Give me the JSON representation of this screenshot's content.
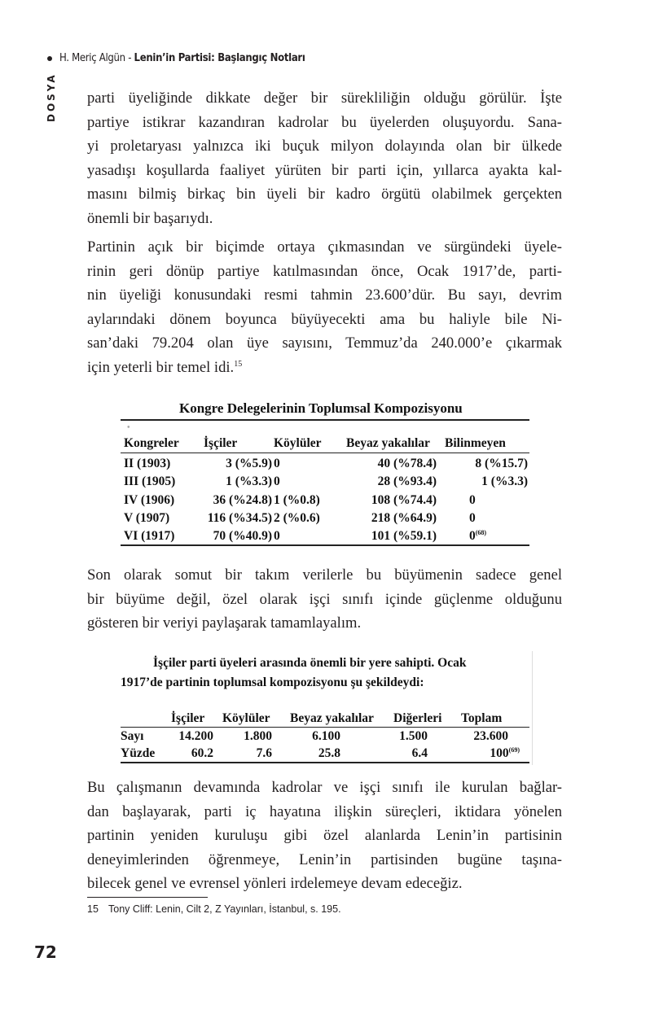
{
  "header": {
    "author": "H. Meriç Algün - ",
    "title": "Lenin’in Partisi: Başlangıç Notları",
    "section": "DOSYA"
  },
  "paragraphs": [
    {
      "lines": [
        "parti üyeliğinde dikkate değer bir sürekliliğin olduğu görülür. İşte",
        "partiye istikrar kazandıran kadrolar bu üyelerden oluşuyordu. Sana-",
        "yi proletaryası yalnızca iki buçuk milyon dolayında olan bir ülkede",
        "yasadışı koşullarda faaliyet yürüten bir parti için, yıllarca ayakta kal-",
        "masını bilmiş birkaç bin üyeli bir kadro örgütü olabilmek gerçekten",
        "önemli bir başarıydı."
      ]
    },
    {
      "lines": [
        "Partinin açık bir biçimde ortaya çıkmasından ve sürgündeki üyele-",
        "rinin geri dönüp partiye katılmasından önce, Ocak 1917’de, parti-",
        "nin üyeliği konusundaki resmi tahmin 23.600’dür. Bu sayı, devrim",
        "aylarındaki dönem boyunca büyüyecekti ama bu haliyle bile Ni-",
        "san’daki 79.204 olan üye sayısını, Temmuz’da 240.000’e çıkarmak",
        "için yeterli bir temel idi."
      ],
      "footnote_ref": "15"
    },
    {
      "lines": [
        "Son olarak somut bir takım verilerle bu büyümenin sadece genel",
        "bir büyüme değil, özel olarak işçi sınıfı içinde güçlenme olduğunu",
        "gösteren bir veriyi paylaşarak tamamlayalım."
      ]
    },
    {
      "lines": [
        "Bu çalışmanın devamında kadrolar ve işçi sınıfı ile kurulan bağlar-",
        "dan başlayarak, parti iç hayatına ilişkin süreçleri, iktidara yönelen",
        "partinin yeniden kuruluşu gibi özel alanlarda Lenin’in partisinin",
        "deneyimlerinden öğrenmeye, Lenin’in partisinden bugüne taşına-",
        "bilecek genel ve evrensel yönleri irdelemeye devam edeceğiz."
      ]
    }
  ],
  "table1": {
    "title": "Kongre Delegelerinin Toplumsal Kompozisyonu",
    "headers": [
      "Kongreler",
      "İşçiler",
      "Köylüler",
      "Beyaz yakalılar",
      "Bilinmeyen"
    ],
    "rows": [
      [
        "II  (1903)",
        "3 (%5.9)",
        "0",
        "40 (%78.4)",
        "8 (%15.7)"
      ],
      [
        "III (1905)",
        "1 (%3.3)",
        "0",
        "28 (%93.4)",
        "1 (%3.3)"
      ],
      [
        "IV  (1906)",
        "36 (%24.8)",
        "1 (%0.8)",
        "108 (%74.4)",
        "0"
      ],
      [
        "V   (1907)",
        "116 (%34.5)",
        "2 (%0.6)",
        "218 (%64.9)",
        "0"
      ],
      [
        "VI  (1917)",
        "70 (%40.9)",
        "0",
        "101 (%59.1)",
        "0"
      ]
    ],
    "note_ref": "(68)"
  },
  "table2": {
    "intro_lines": [
      "İşçiler parti üyeleri arasında önemli bir yere sahipti. Ocak",
      "1917’de partinin toplumsal kompozisyonu şu şekildeydi:"
    ],
    "headers": [
      "",
      "İşçiler",
      "Köylüler",
      "Beyaz yakalılar",
      "Diğerleri",
      "Toplam"
    ],
    "rows": [
      [
        "Sayı",
        "14.200",
        "1.800",
        "6.100",
        "1.500",
        "23.600"
      ],
      [
        "Yüzde",
        "60.2",
        "7.6",
        "25.8",
        "6.4",
        "100"
      ]
    ],
    "note_ref": "(69)"
  },
  "footnote": {
    "number": "15",
    "text": "Tony Cliff: Lenin, Cilt 2, Z Yayınları, İstanbul, s. 195."
  },
  "page_number": "72"
}
